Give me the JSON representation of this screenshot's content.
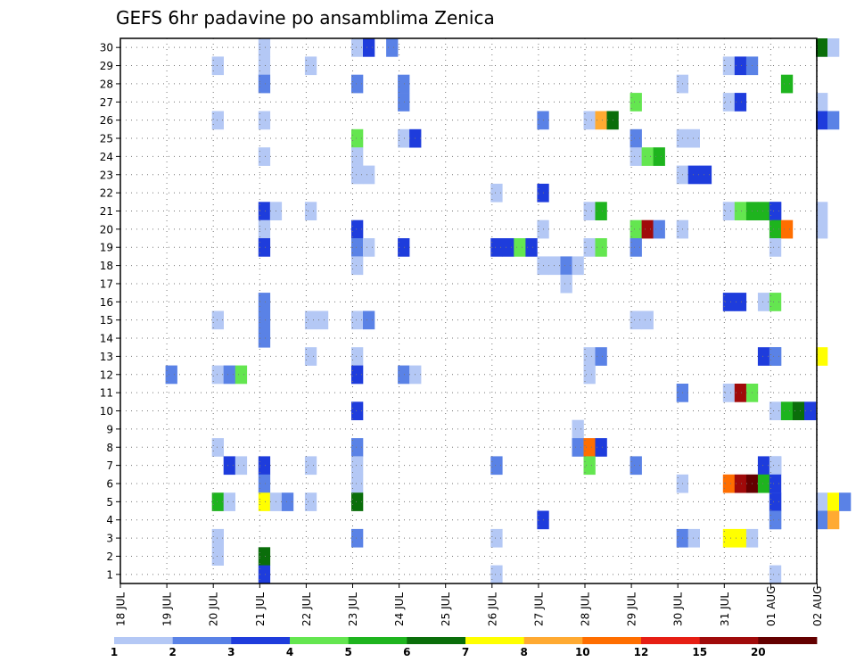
{
  "chart_data": {
    "type": "heatmap",
    "title": "GEFS 6hr padavine po ansamblima Zenica",
    "y_members": [
      "1",
      "2",
      "3",
      "4",
      "5",
      "6",
      "7",
      "8",
      "9",
      "10",
      "11",
      "12",
      "13",
      "14",
      "15",
      "16",
      "17",
      "18",
      "19",
      "20",
      "21",
      "22",
      "23",
      "24",
      "25",
      "26",
      "27",
      "28",
      "29",
      "30"
    ],
    "x_dates": [
      "18 JUL",
      "19 JUL",
      "20 JUL",
      "21 JUL",
      "22 JUL",
      "23 JUL",
      "24 JUL",
      "25 JUL",
      "26 JUL",
      "27 JUL",
      "28 JUL",
      "29 JUL",
      "30 JUL",
      "31 JUL",
      "01 AUG",
      "02 AUG"
    ],
    "x_time_steps_per_day": 4,
    "grid": true,
    "colorbar": {
      "labels": [
        "1",
        "2",
        "3",
        "4",
        "5",
        "6",
        "7",
        "8",
        "10",
        "12",
        "15",
        "20"
      ],
      "colors": [
        "#b4c8f5",
        "#5a82e6",
        "#1e3cdc",
        "#64e650",
        "#1eb41e",
        "#0a6e0a",
        "#ffff00",
        "#ffaa32",
        "#ff6e00",
        "#e61e14",
        "#a00a0a",
        "#640000"
      ]
    },
    "cells": [
      [
        30,
        "21",
        0,
        1
      ],
      [
        30,
        "23",
        0,
        1
      ],
      [
        30,
        "23",
        1,
        3
      ],
      [
        30,
        "23",
        3,
        2
      ],
      [
        30,
        "01 AUG",
        4,
        1
      ],
      [
        30,
        "01 AUG",
        4,
        6
      ],
      [
        30,
        "01 AUG",
        5,
        1
      ],
      [
        29,
        "20",
        0,
        1
      ],
      [
        29,
        "21",
        0,
        1
      ],
      [
        29,
        "22",
        0,
        1
      ],
      [
        29,
        "31",
        0,
        1
      ],
      [
        29,
        "31",
        1,
        3
      ],
      [
        29,
        "31",
        2,
        2
      ],
      [
        28,
        "21",
        0,
        2
      ],
      [
        28,
        "23",
        0,
        2
      ],
      [
        28,
        "24",
        0,
        2
      ],
      [
        28,
        "30",
        0,
        1
      ],
      [
        28,
        "01 AUG",
        1,
        5
      ],
      [
        27,
        "24",
        0,
        2
      ],
      [
        27,
        "29",
        0,
        4
      ],
      [
        27,
        "31",
        0,
        1
      ],
      [
        27,
        "31",
        1,
        3
      ],
      [
        27,
        "01 AUG",
        4,
        1
      ],
      [
        26,
        "20",
        0,
        1
      ],
      [
        26,
        "21",
        0,
        1
      ],
      [
        26,
        "27",
        0,
        2
      ],
      [
        26,
        "28",
        0,
        1
      ],
      [
        26,
        "28",
        1,
        8
      ],
      [
        26,
        "28",
        2,
        6
      ],
      [
        26,
        "01 AUG",
        4,
        3
      ],
      [
        26,
        "01 AUG",
        5,
        2
      ],
      [
        25,
        "23",
        0,
        4
      ],
      [
        25,
        "24",
        0,
        1
      ],
      [
        25,
        "24",
        1,
        3
      ],
      [
        25,
        "29",
        0,
        2
      ],
      [
        25,
        "30",
        0,
        1
      ],
      [
        25,
        "30",
        1,
        1
      ],
      [
        24,
        "21",
        0,
        1
      ],
      [
        24,
        "23",
        0,
        1
      ],
      [
        24,
        "29",
        0,
        1
      ],
      [
        24,
        "29",
        1,
        4
      ],
      [
        24,
        "29",
        2,
        5
      ],
      [
        23,
        "23",
        0,
        1
      ],
      [
        23,
        "23",
        1,
        1
      ],
      [
        23,
        "30",
        0,
        1
      ],
      [
        23,
        "30",
        1,
        3
      ],
      [
        23,
        "30",
        2,
        3
      ],
      [
        22,
        "26",
        0,
        1
      ],
      [
        22,
        "27",
        0,
        3
      ],
      [
        21,
        "21",
        0,
        3
      ],
      [
        21,
        "21",
        1,
        1
      ],
      [
        21,
        "22",
        0,
        1
      ],
      [
        21,
        "28",
        0,
        1
      ],
      [
        21,
        "28",
        1,
        5
      ],
      [
        21,
        "31",
        0,
        1
      ],
      [
        21,
        "31",
        1,
        4
      ],
      [
        21,
        "31",
        2,
        5
      ],
      [
        21,
        "31",
        3,
        5
      ],
      [
        21,
        "31",
        4,
        3
      ],
      [
        21,
        "01 AUG",
        0,
        3
      ],
      [
        21,
        "01 AUG",
        4,
        1
      ],
      [
        20,
        "21",
        0,
        1
      ],
      [
        20,
        "23",
        0,
        3
      ],
      [
        20,
        "27",
        0,
        1
      ],
      [
        20,
        "29",
        0,
        4
      ],
      [
        20,
        "29",
        1,
        11
      ],
      [
        20,
        "29",
        2,
        2
      ],
      [
        20,
        "30",
        0,
        1
      ],
      [
        20,
        "01 AUG",
        0,
        5
      ],
      [
        20,
        "01 AUG",
        1,
        9
      ],
      [
        20,
        "01 AUG",
        4,
        1
      ],
      [
        19,
        "21",
        0,
        3
      ],
      [
        19,
        "23",
        0,
        2
      ],
      [
        19,
        "23",
        1,
        1
      ],
      [
        19,
        "24",
        0,
        3
      ],
      [
        19,
        "26",
        0,
        3
      ],
      [
        19,
        "26",
        1,
        3
      ],
      [
        19,
        "26",
        2,
        4
      ],
      [
        19,
        "26",
        3,
        3
      ],
      [
        19,
        "28",
        0,
        1
      ],
      [
        19,
        "28",
        1,
        4
      ],
      [
        19,
        "29",
        0,
        2
      ],
      [
        19,
        "31",
        4,
        1
      ],
      [
        18,
        "23",
        0,
        1
      ],
      [
        18,
        "27",
        0,
        1
      ],
      [
        18,
        "27",
        1,
        1
      ],
      [
        18,
        "27",
        2,
        2
      ],
      [
        18,
        "27",
        3,
        1
      ],
      [
        17,
        "27",
        2,
        1
      ],
      [
        16,
        "21",
        0,
        2
      ],
      [
        16,
        "31",
        0,
        3
      ],
      [
        16,
        "31",
        1,
        3
      ],
      [
        16,
        "31",
        3,
        1
      ],
      [
        16,
        "31",
        4,
        4
      ],
      [
        15,
        "20",
        0,
        1
      ],
      [
        15,
        "21",
        0,
        2
      ],
      [
        15,
        "22",
        0,
        1
      ],
      [
        15,
        "22",
        1,
        1
      ],
      [
        15,
        "23",
        0,
        1
      ],
      [
        15,
        "23",
        1,
        2
      ],
      [
        15,
        "29",
        0,
        1
      ],
      [
        15,
        "29",
        1,
        1
      ],
      [
        14,
        "21",
        0,
        2
      ],
      [
        13,
        "22",
        0,
        1
      ],
      [
        13,
        "23",
        0,
        1
      ],
      [
        13,
        "28",
        0,
        1
      ],
      [
        13,
        "28",
        1,
        2
      ],
      [
        13,
        "31",
        3,
        3
      ],
      [
        13,
        "31",
        4,
        2
      ],
      [
        13,
        "01 AUG",
        0,
        2
      ],
      [
        13,
        "01 AUG",
        4,
        7
      ],
      [
        12,
        "19",
        0,
        2
      ],
      [
        12,
        "20",
        0,
        1
      ],
      [
        12,
        "20",
        1,
        2
      ],
      [
        12,
        "20",
        2,
        4
      ],
      [
        12,
        "23",
        0,
        3
      ],
      [
        12,
        "24",
        0,
        2
      ],
      [
        12,
        "24",
        1,
        1
      ],
      [
        12,
        "28",
        0,
        1
      ],
      [
        11,
        "30",
        0,
        2
      ],
      [
        11,
        "31",
        0,
        1
      ],
      [
        11,
        "31",
        1,
        11
      ],
      [
        11,
        "31",
        2,
        4
      ],
      [
        10,
        "23",
        0,
        3
      ],
      [
        10,
        "01 AUG",
        0,
        1
      ],
      [
        10,
        "01 AUG",
        1,
        5
      ],
      [
        10,
        "01 AUG",
        2,
        6
      ],
      [
        10,
        "01 AUG",
        3,
        3
      ],
      [
        9,
        "27",
        3,
        1
      ],
      [
        8,
        "20",
        0,
        1
      ],
      [
        8,
        "23",
        0,
        2
      ],
      [
        8,
        "27",
        3,
        2
      ],
      [
        8,
        "28",
        0,
        9
      ],
      [
        8,
        "28",
        1,
        3
      ],
      [
        7,
        "20",
        1,
        3
      ],
      [
        7,
        "20",
        2,
        1
      ],
      [
        7,
        "21",
        0,
        3
      ],
      [
        7,
        "22",
        0,
        1
      ],
      [
        7,
        "23",
        0,
        1
      ],
      [
        7,
        "26",
        0,
        2
      ],
      [
        7,
        "28",
        0,
        4
      ],
      [
        7,
        "29",
        0,
        2
      ],
      [
        7,
        "31",
        3,
        3
      ],
      [
        7,
        "31",
        4,
        2
      ],
      [
        7,
        "01 AUG",
        0,
        1
      ],
      [
        6,
        "21",
        0,
        2
      ],
      [
        6,
        "23",
        0,
        1
      ],
      [
        6,
        "30",
        0,
        1
      ],
      [
        6,
        "31",
        0,
        9
      ],
      [
        6,
        "31",
        1,
        11
      ],
      [
        6,
        "31",
        2,
        12
      ],
      [
        6,
        "31",
        3,
        5
      ],
      [
        6,
        "31",
        4,
        3
      ],
      [
        5,
        "20",
        0,
        5
      ],
      [
        5,
        "20",
        1,
        1
      ],
      [
        5,
        "21",
        0,
        7
      ],
      [
        5,
        "21",
        1,
        1
      ],
      [
        5,
        "21",
        2,
        2
      ],
      [
        5,
        "22",
        0,
        1
      ],
      [
        5,
        "23",
        0,
        6
      ],
      [
        5,
        "31",
        4,
        2
      ],
      [
        5,
        "01 AUG",
        0,
        3
      ],
      [
        5,
        "01 AUG",
        4,
        1
      ],
      [
        5,
        "01 AUG",
        5,
        7
      ],
      [
        5,
        "01 AUG",
        6,
        2
      ],
      [
        4,
        "27",
        0,
        3
      ],
      [
        4,
        "31",
        4,
        2
      ],
      [
        4,
        "01 AUG",
        0,
        2
      ],
      [
        4,
        "01 AUG",
        4,
        2
      ],
      [
        4,
        "01 AUG",
        5,
        8
      ],
      [
        3,
        "20",
        0,
        1
      ],
      [
        3,
        "23",
        0,
        2
      ],
      [
        3,
        "26",
        0,
        1
      ],
      [
        3,
        "30",
        0,
        2
      ],
      [
        3,
        "30",
        1,
        1
      ],
      [
        3,
        "31",
        0,
        7
      ],
      [
        3,
        "31",
        1,
        7
      ],
      [
        3,
        "31",
        2,
        1
      ],
      [
        2,
        "20",
        0,
        1
      ],
      [
        2,
        "21",
        0,
        6
      ],
      [
        1,
        "21",
        0,
        3
      ],
      [
        1,
        "26",
        0,
        1
      ],
      [
        1,
        "01 AUG",
        0,
        1
      ]
    ]
  }
}
